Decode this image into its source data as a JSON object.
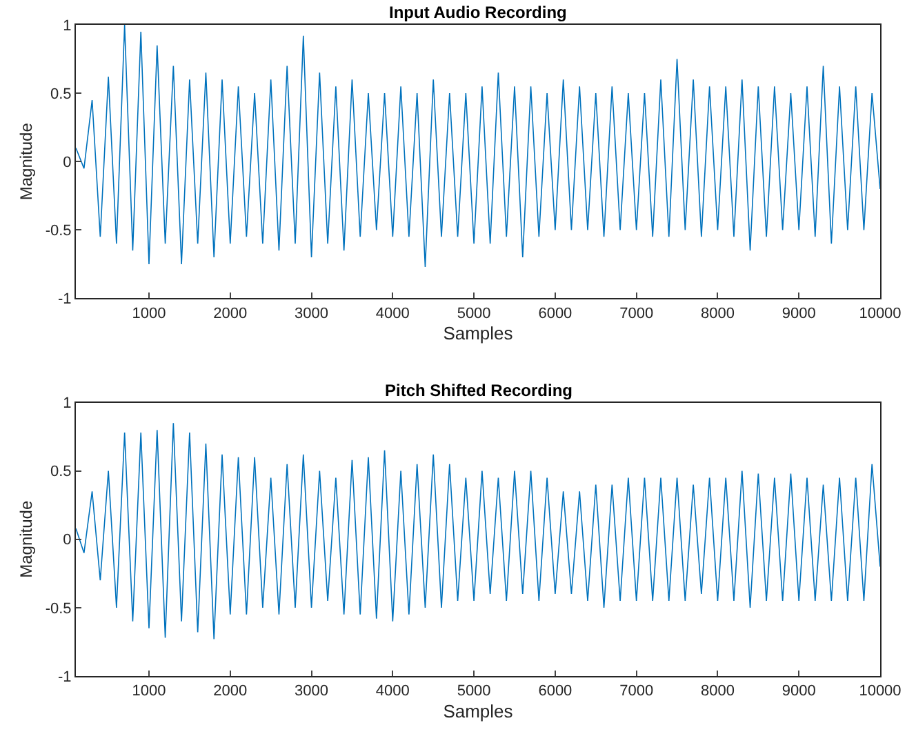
{
  "chart_data": [
    {
      "type": "line",
      "title": "Input Audio Recording",
      "xlabel": "Samples",
      "ylabel": "Magnitude",
      "xlim": [
        100,
        10000
      ],
      "xticks": [
        1000,
        2000,
        3000,
        4000,
        5000,
        6000,
        7000,
        8000,
        9000,
        10000
      ],
      "ylim": [
        -1,
        1
      ],
      "yticks": [
        -1,
        -0.5,
        0,
        0.5,
        1
      ],
      "x": [
        100,
        200,
        300,
        400,
        500,
        600,
        700,
        800,
        900,
        1000,
        1100,
        1200,
        1300,
        1400,
        1500,
        1600,
        1700,
        1800,
        1900,
        2000,
        2100,
        2200,
        2300,
        2400,
        2500,
        2600,
        2700,
        2800,
        2900,
        3000,
        3100,
        3200,
        3300,
        3400,
        3500,
        3600,
        3700,
        3800,
        3900,
        4000,
        4100,
        4200,
        4300,
        4400,
        4500,
        4600,
        4700,
        4800,
        4900,
        5000,
        5100,
        5200,
        5300,
        5400,
        5500,
        5600,
        5700,
        5800,
        5900,
        6000,
        6100,
        6200,
        6300,
        6400,
        6500,
        6600,
        6700,
        6800,
        6900,
        7000,
        7100,
        7200,
        7300,
        7400,
        7500,
        7600,
        7700,
        7800,
        7900,
        8000,
        8100,
        8200,
        8300,
        8400,
        8500,
        8600,
        8700,
        8800,
        8900,
        9000,
        9100,
        9200,
        9300,
        9400,
        9500,
        9600,
        9700,
        9800,
        9900,
        10000
      ],
      "series": [
        {
          "color": "#0072bd",
          "values": [
            0.1,
            -0.05,
            0.45,
            -0.55,
            0.62,
            -0.6,
            1.0,
            -0.65,
            0.95,
            -0.75,
            0.85,
            -0.6,
            0.7,
            -0.75,
            0.6,
            -0.6,
            0.65,
            -0.7,
            0.6,
            -0.6,
            0.55,
            -0.55,
            0.5,
            -0.6,
            0.6,
            -0.65,
            0.7,
            -0.6,
            0.92,
            -0.7,
            0.65,
            -0.6,
            0.55,
            -0.65,
            0.6,
            -0.55,
            0.5,
            -0.5,
            0.5,
            -0.55,
            0.55,
            -0.55,
            0.5,
            -0.77,
            0.6,
            -0.55,
            0.5,
            -0.55,
            0.5,
            -0.6,
            0.55,
            -0.6,
            0.65,
            -0.55,
            0.55,
            -0.7,
            0.55,
            -0.55,
            0.5,
            -0.5,
            0.6,
            -0.5,
            0.55,
            -0.5,
            0.5,
            -0.55,
            0.55,
            -0.5,
            0.5,
            -0.5,
            0.5,
            -0.55,
            0.6,
            -0.55,
            0.75,
            -0.5,
            0.6,
            -0.55,
            0.55,
            -0.5,
            0.55,
            -0.55,
            0.6,
            -0.65,
            0.55,
            -0.55,
            0.55,
            -0.5,
            0.5,
            -0.5,
            0.55,
            -0.55,
            0.7,
            -0.6,
            0.55,
            -0.5,
            0.55,
            -0.5,
            0.5,
            -0.2
          ]
        }
      ]
    },
    {
      "type": "line",
      "title": "Pitch Shifted Recording",
      "xlabel": "Samples",
      "ylabel": "Magnitude",
      "xlim": [
        100,
        10000
      ],
      "xticks": [
        1000,
        2000,
        3000,
        4000,
        5000,
        6000,
        7000,
        8000,
        9000,
        10000
      ],
      "ylim": [
        -1,
        1
      ],
      "yticks": [
        -1,
        -0.5,
        0,
        0.5,
        1
      ],
      "x": [
        100,
        200,
        300,
        400,
        500,
        600,
        700,
        800,
        900,
        1000,
        1100,
        1200,
        1300,
        1400,
        1500,
        1600,
        1700,
        1800,
        1900,
        2000,
        2100,
        2200,
        2300,
        2400,
        2500,
        2600,
        2700,
        2800,
        2900,
        3000,
        3100,
        3200,
        3300,
        3400,
        3500,
        3600,
        3700,
        3800,
        3900,
        4000,
        4100,
        4200,
        4300,
        4400,
        4500,
        4600,
        4700,
        4800,
        4900,
        5000,
        5100,
        5200,
        5300,
        5400,
        5500,
        5600,
        5700,
        5800,
        5900,
        6000,
        6100,
        6200,
        6300,
        6400,
        6500,
        6600,
        6700,
        6800,
        6900,
        7000,
        7100,
        7200,
        7300,
        7400,
        7500,
        7600,
        7700,
        7800,
        7900,
        8000,
        8100,
        8200,
        8300,
        8400,
        8500,
        8600,
        8700,
        8800,
        8900,
        9000,
        9100,
        9200,
        9300,
        9400,
        9500,
        9600,
        9700,
        9800,
        9900,
        10000
      ],
      "series": [
        {
          "color": "#0072bd",
          "values": [
            0.08,
            -0.1,
            0.35,
            -0.3,
            0.5,
            -0.5,
            0.78,
            -0.6,
            0.78,
            -0.65,
            0.8,
            -0.72,
            0.85,
            -0.6,
            0.78,
            -0.68,
            0.7,
            -0.73,
            0.62,
            -0.55,
            0.6,
            -0.55,
            0.6,
            -0.5,
            0.45,
            -0.55,
            0.55,
            -0.5,
            0.62,
            -0.5,
            0.5,
            -0.45,
            0.45,
            -0.55,
            0.58,
            -0.55,
            0.6,
            -0.58,
            0.65,
            -0.6,
            0.5,
            -0.55,
            0.55,
            -0.5,
            0.62,
            -0.5,
            0.55,
            -0.45,
            0.45,
            -0.45,
            0.5,
            -0.4,
            0.45,
            -0.45,
            0.5,
            -0.4,
            0.5,
            -0.45,
            0.45,
            -0.4,
            0.35,
            -0.4,
            0.35,
            -0.45,
            0.4,
            -0.5,
            0.4,
            -0.45,
            0.45,
            -0.45,
            0.45,
            -0.45,
            0.45,
            -0.45,
            0.45,
            -0.45,
            0.4,
            -0.4,
            0.45,
            -0.45,
            0.45,
            -0.45,
            0.5,
            -0.5,
            0.48,
            -0.45,
            0.45,
            -0.45,
            0.48,
            -0.45,
            0.45,
            -0.45,
            0.4,
            -0.45,
            0.45,
            -0.45,
            0.45,
            -0.45,
            0.55,
            -0.2
          ]
        }
      ]
    }
  ]
}
